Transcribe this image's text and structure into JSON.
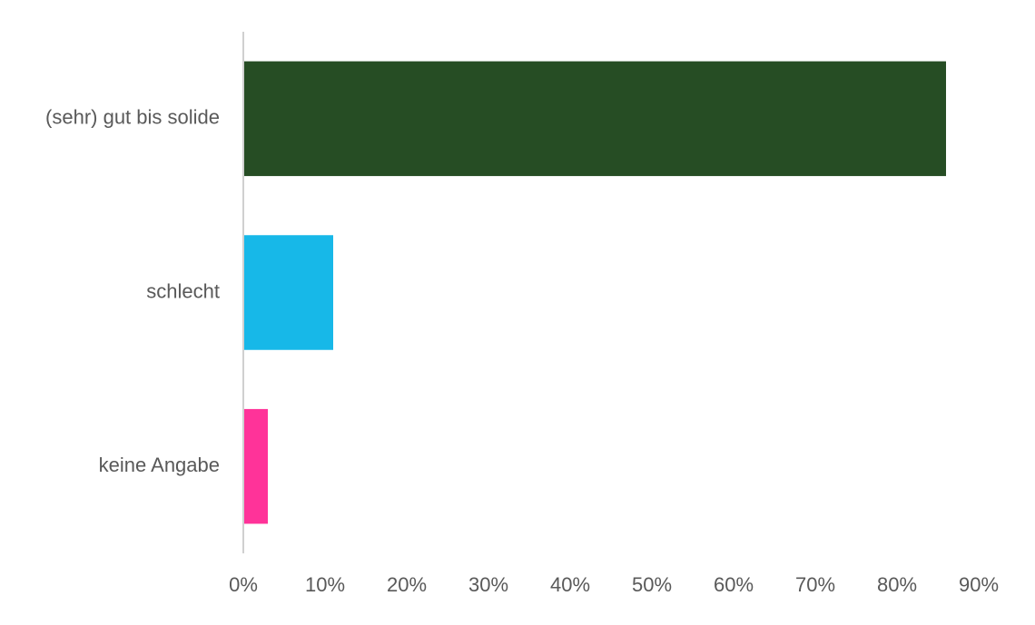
{
  "chart_data": {
    "type": "bar",
    "orientation": "horizontal",
    "categories": [
      "(sehr) gut bis solide",
      "schlecht",
      "keine Angabe"
    ],
    "values": [
      86,
      11,
      3
    ],
    "colors": [
      "#264d24",
      "#17b8e8",
      "#ff3399"
    ],
    "xlim": [
      0,
      90
    ],
    "xticks": [
      {
        "value": 0,
        "label": "0%"
      },
      {
        "value": 10,
        "label": "10%"
      },
      {
        "value": 20,
        "label": "20%"
      },
      {
        "value": 30,
        "label": "30%"
      },
      {
        "value": 40,
        "label": "40%"
      },
      {
        "value": 50,
        "label": "50%"
      },
      {
        "value": 60,
        "label": "60%"
      },
      {
        "value": 70,
        "label": "70%"
      },
      {
        "value": 80,
        "label": "80%"
      },
      {
        "value": 90,
        "label": "90%"
      }
    ],
    "grid": false
  }
}
